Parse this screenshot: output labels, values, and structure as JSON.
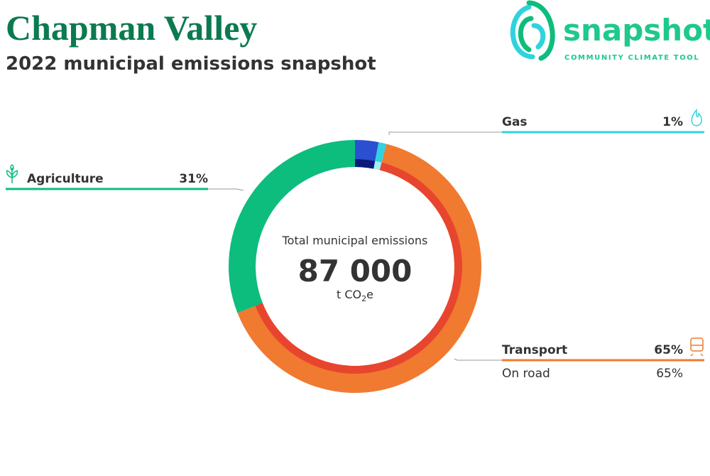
{
  "title": "Chapman Valley",
  "subtitle": "2022 municipal emissions snapshot",
  "logo": {
    "name": "snapshot",
    "tagline": "COMMUNITY CLIMATE TOOL"
  },
  "chart_data": {
    "type": "donut",
    "center_label": "Total municipal emissions",
    "total": {
      "value": 87000,
      "label": "87 000"
    },
    "unit": {
      "text": "t CO",
      "sub": "2",
      "tail": "e"
    },
    "categories": [
      null,
      "Gas",
      "Transport",
      "Agriculture"
    ],
    "values": [
      3,
      1,
      65,
      31
    ],
    "value_labels": [
      null,
      "1%",
      "65%",
      "31%"
    ],
    "colors": [
      "#2a4fd0",
      "#2fd3e0",
      "#f07a30",
      "#0dbd7d"
    ],
    "subcategories": [
      null,
      null,
      "On road",
      null
    ],
    "subvalues": [
      3,
      1,
      65,
      31
    ],
    "subvalue_labels": [
      null,
      null,
      "65%",
      null
    ],
    "subcolors": [
      "#0b1a7a",
      "#a8eef0",
      "#e8452f",
      "#0dbd7d"
    ]
  }
}
